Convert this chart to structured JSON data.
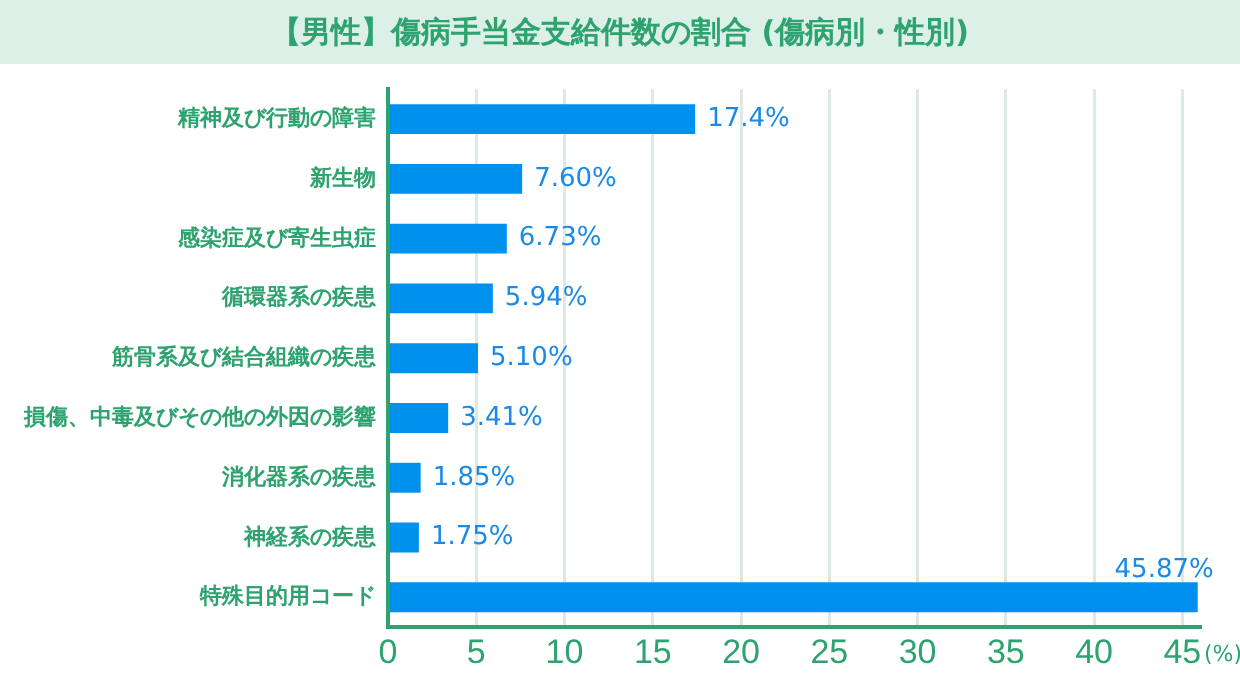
{
  "chart_data": {
    "type": "bar",
    "orientation": "horizontal",
    "title": "【男性】傷病手当金支給件数の割合 (傷病別・性別)",
    "xlabel": "(%)",
    "categories": [
      "精神及び行動の障害",
      "新生物",
      "感染症及び寄生虫症",
      "循環器系の疾患",
      "筋骨系及び結合組織の疾患",
      "損傷、中毒及びその他の外因の影響",
      "消化器系の疾患",
      "神経系の疾患",
      "特殊目的用コード"
    ],
    "values": [
      17.4,
      7.6,
      6.73,
      5.94,
      5.1,
      3.41,
      1.85,
      1.75,
      45.87
    ],
    "value_labels": [
      "17.4%",
      "7.60%",
      "6.73%",
      "5.94%",
      "5.10%",
      "3.41%",
      "1.85%",
      "1.75%",
      "45.87%"
    ],
    "color": "#0091ef",
    "xlim": [
      0,
      46
    ],
    "xticks": [
      0,
      5,
      10,
      15,
      20,
      25,
      30,
      35,
      40,
      45
    ],
    "grid": "x",
    "legend": false
  }
}
